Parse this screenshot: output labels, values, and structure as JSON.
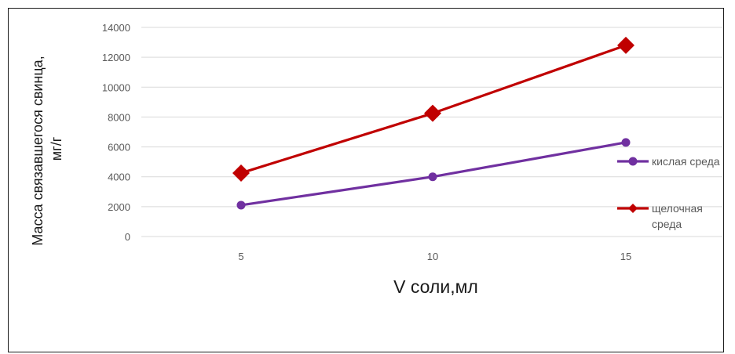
{
  "chart_data": {
    "type": "line",
    "categories": [
      "5",
      "10",
      "15"
    ],
    "x": [
      5,
      10,
      15
    ],
    "ylim": [
      0,
      14000
    ],
    "yticks": [
      0,
      2000,
      4000,
      6000,
      8000,
      10000,
      12000,
      14000
    ],
    "grid": true,
    "xlabel": "V соли,мл",
    "ylabel_lines": [
      "Масса связавшегося свинца,",
      "мг/г"
    ],
    "legend_position": "right",
    "series": [
      {
        "name": "кислая среда",
        "name_lines": [
          "кислая среда"
        ],
        "values": [
          2100,
          4000,
          6300
        ],
        "color": "#7030a0",
        "marker": "circle"
      },
      {
        "name": "щелочная среда",
        "name_lines": [
          "щелочная",
          "среда"
        ],
        "values": [
          4250,
          8250,
          12800
        ],
        "color": "#c00000",
        "marker": "diamond"
      }
    ]
  }
}
